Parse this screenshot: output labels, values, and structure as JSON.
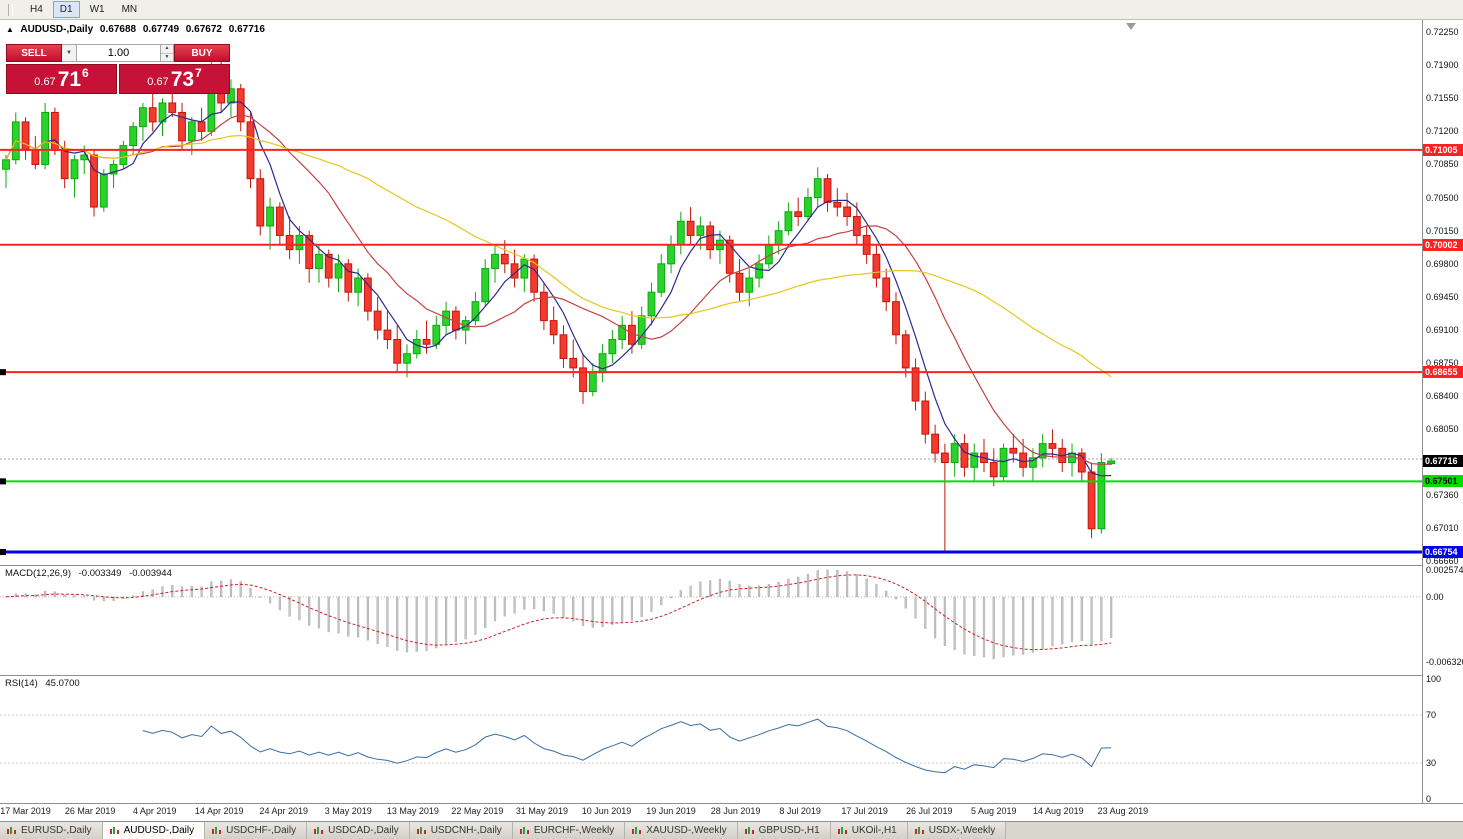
{
  "toolbar": {
    "timeframes": [
      {
        "label": "H4",
        "active": false
      },
      {
        "label": "D1",
        "active": true
      },
      {
        "label": "W1",
        "active": false
      },
      {
        "label": "MN",
        "active": false
      }
    ]
  },
  "icons": {
    "symbol_marker": "▲",
    "dropdown": "▼",
    "spin_up": "▲",
    "spin_down": "▼"
  },
  "header": {
    "symbol": "AUDUSD-,Daily",
    "open": "0.67688",
    "high": "0.67749",
    "low": "0.67672",
    "close": "0.67716"
  },
  "trade_panel": {
    "sell_label": "SELL",
    "buy_label": "BUY",
    "volume": "1.00",
    "bid": {
      "prefix": "0.67",
      "big": "71",
      "sup": "6"
    },
    "ask": {
      "prefix": "0.67",
      "big": "73",
      "sup": "7"
    }
  },
  "levels": [
    {
      "value": 0.71005,
      "label": "0.71005",
      "color": "#ff2020",
      "text_color": "#ffffff",
      "width": 2,
      "anchor": false
    },
    {
      "value": 0.70002,
      "label": "0.70002",
      "color": "#ff2020",
      "text_color": "#ffffff",
      "width": 2,
      "anchor": false
    },
    {
      "value": 0.68655,
      "label": "0.68655",
      "color": "#ff2020",
      "text_color": "#ffffff",
      "width": 2,
      "anchor": true
    },
    {
      "value": 0.67501,
      "label": "0.67501",
      "color": "#00dd00",
      "text_color": "#000000",
      "width": 2,
      "anchor": true
    },
    {
      "value": 0.66754,
      "label": "0.66754",
      "color": "#0000ee",
      "text_color": "#ffffff",
      "width": 3,
      "anchor": true
    }
  ],
  "chart_data": {
    "type": "candlestick",
    "title": "AUDUSD-,Daily",
    "current_price": {
      "value": 0.67716,
      "label": "0.67716",
      "badge_bg": "#000000",
      "badge_text": "#ffffff"
    },
    "ask_line": 0.67737,
    "price_range": {
      "min": 0.66617,
      "max": 0.72377
    },
    "axis_ticks": [
      "0.72250",
      "0.71900",
      "0.71550",
      "0.71200",
      "0.70850",
      "0.70500",
      "0.70150",
      "0.69800",
      "0.69450",
      "0.69100",
      "0.68750",
      "0.68400",
      "0.68050",
      "0.67360",
      "0.67010",
      "0.66660"
    ],
    "x_labels": [
      "17 Mar 2019",
      "26 Mar 2019",
      "4 Apr 2019",
      "14 Apr 2019",
      "24 Apr 2019",
      "3 May 2019",
      "13 May 2019",
      "22 May 2019",
      "31 May 2019",
      "10 Jun 2019",
      "19 Jun 2019",
      "28 Jun 2019",
      "8 Jul 2019",
      "17 Jul 2019",
      "26 Jul 2019",
      "5 Aug 2019",
      "14 Aug 2019",
      "23 Aug 2019"
    ],
    "colors": {
      "up_fill": "#2bd22b",
      "up_stroke": "#0da80d",
      "down_fill": "#f23a2e",
      "down_stroke": "#c6150b"
    },
    "moving_averages": [
      {
        "period": 5,
        "color": "#2b2b8f"
      },
      {
        "period": 13,
        "color": "#c24444"
      },
      {
        "period": 34,
        "color": "#e8c61a"
      }
    ],
    "candles": [
      [
        0.708,
        0.7095,
        0.706,
        0.709
      ],
      [
        0.709,
        0.714,
        0.7085,
        0.713
      ],
      [
        0.713,
        0.7135,
        0.709,
        0.71
      ],
      [
        0.71,
        0.7115,
        0.708,
        0.7085
      ],
      [
        0.7085,
        0.715,
        0.708,
        0.714
      ],
      [
        0.714,
        0.7145,
        0.7095,
        0.71
      ],
      [
        0.71,
        0.711,
        0.706,
        0.707
      ],
      [
        0.707,
        0.7095,
        0.705,
        0.709
      ],
      [
        0.709,
        0.7105,
        0.7075,
        0.7095
      ],
      [
        0.7095,
        0.71,
        0.703,
        0.704
      ],
      [
        0.704,
        0.708,
        0.7035,
        0.7075
      ],
      [
        0.7075,
        0.709,
        0.706,
        0.7085
      ],
      [
        0.7085,
        0.711,
        0.708,
        0.7105
      ],
      [
        0.7105,
        0.713,
        0.7095,
        0.7125
      ],
      [
        0.7125,
        0.715,
        0.711,
        0.7145
      ],
      [
        0.7145,
        0.716,
        0.712,
        0.713
      ],
      [
        0.713,
        0.7155,
        0.7115,
        0.715
      ],
      [
        0.715,
        0.7165,
        0.7135,
        0.714
      ],
      [
        0.714,
        0.715,
        0.71,
        0.711
      ],
      [
        0.711,
        0.7135,
        0.7095,
        0.713
      ],
      [
        0.713,
        0.7145,
        0.711,
        0.712
      ],
      [
        0.712,
        0.7205,
        0.7115,
        0.719
      ],
      [
        0.719,
        0.7195,
        0.714,
        0.715
      ],
      [
        0.715,
        0.7175,
        0.7135,
        0.7165
      ],
      [
        0.7165,
        0.717,
        0.712,
        0.713
      ],
      [
        0.713,
        0.714,
        0.706,
        0.707
      ],
      [
        0.707,
        0.708,
        0.701,
        0.702
      ],
      [
        0.702,
        0.705,
        0.6995,
        0.704
      ],
      [
        0.704,
        0.7045,
        0.7,
        0.701
      ],
      [
        0.701,
        0.703,
        0.6985,
        0.6995
      ],
      [
        0.6995,
        0.702,
        0.698,
        0.701
      ],
      [
        0.701,
        0.7015,
        0.696,
        0.6975
      ],
      [
        0.6975,
        0.7,
        0.696,
        0.699
      ],
      [
        0.699,
        0.6995,
        0.6955,
        0.6965
      ],
      [
        0.6965,
        0.699,
        0.695,
        0.698
      ],
      [
        0.698,
        0.6985,
        0.694,
        0.695
      ],
      [
        0.695,
        0.6975,
        0.6935,
        0.6965
      ],
      [
        0.6965,
        0.697,
        0.692,
        0.693
      ],
      [
        0.693,
        0.6945,
        0.69,
        0.691
      ],
      [
        0.691,
        0.693,
        0.689,
        0.69
      ],
      [
        0.69,
        0.6915,
        0.6865,
        0.6875
      ],
      [
        0.6875,
        0.6895,
        0.686,
        0.6885
      ],
      [
        0.6885,
        0.691,
        0.688,
        0.69
      ],
      [
        0.69,
        0.692,
        0.6885,
        0.6895
      ],
      [
        0.6895,
        0.6925,
        0.689,
        0.6915
      ],
      [
        0.6915,
        0.694,
        0.6905,
        0.693
      ],
      [
        0.693,
        0.6935,
        0.69,
        0.691
      ],
      [
        0.691,
        0.6925,
        0.6895,
        0.692
      ],
      [
        0.692,
        0.695,
        0.6915,
        0.694
      ],
      [
        0.694,
        0.6985,
        0.6935,
        0.6975
      ],
      [
        0.6975,
        0.7,
        0.696,
        0.699
      ],
      [
        0.699,
        0.7005,
        0.697,
        0.698
      ],
      [
        0.698,
        0.6995,
        0.6955,
        0.6965
      ],
      [
        0.6965,
        0.699,
        0.695,
        0.6985
      ],
      [
        0.6985,
        0.699,
        0.694,
        0.695
      ],
      [
        0.695,
        0.696,
        0.691,
        0.692
      ],
      [
        0.692,
        0.6935,
        0.6895,
        0.6905
      ],
      [
        0.6905,
        0.6915,
        0.687,
        0.688
      ],
      [
        0.688,
        0.69,
        0.686,
        0.687
      ],
      [
        0.687,
        0.6885,
        0.6832,
        0.6845
      ],
      [
        0.6845,
        0.6875,
        0.684,
        0.6865
      ],
      [
        0.6865,
        0.6895,
        0.6855,
        0.6885
      ],
      [
        0.6885,
        0.691,
        0.6875,
        0.69
      ],
      [
        0.69,
        0.6925,
        0.689,
        0.6915
      ],
      [
        0.6915,
        0.693,
        0.6885,
        0.6895
      ],
      [
        0.6895,
        0.6935,
        0.689,
        0.6925
      ],
      [
        0.6925,
        0.696,
        0.6915,
        0.695
      ],
      [
        0.695,
        0.699,
        0.6945,
        0.698
      ],
      [
        0.698,
        0.701,
        0.697,
        0.7
      ],
      [
        0.7,
        0.7035,
        0.699,
        0.7025
      ],
      [
        0.7025,
        0.704,
        0.7,
        0.701
      ],
      [
        0.701,
        0.703,
        0.6995,
        0.702
      ],
      [
        0.702,
        0.7025,
        0.6985,
        0.6995
      ],
      [
        0.6995,
        0.7015,
        0.698,
        0.7005
      ],
      [
        0.7005,
        0.701,
        0.696,
        0.697
      ],
      [
        0.697,
        0.6985,
        0.694,
        0.695
      ],
      [
        0.695,
        0.6975,
        0.6935,
        0.6965
      ],
      [
        0.6965,
        0.699,
        0.6955,
        0.698
      ],
      [
        0.698,
        0.701,
        0.6975,
        0.7
      ],
      [
        0.7,
        0.7025,
        0.699,
        0.7015
      ],
      [
        0.7015,
        0.7045,
        0.701,
        0.7035
      ],
      [
        0.7035,
        0.705,
        0.702,
        0.703
      ],
      [
        0.703,
        0.706,
        0.7025,
        0.705
      ],
      [
        0.705,
        0.7082,
        0.704,
        0.707
      ],
      [
        0.707,
        0.7075,
        0.7035,
        0.7045
      ],
      [
        0.7045,
        0.706,
        0.703,
        0.704
      ],
      [
        0.704,
        0.7055,
        0.702,
        0.703
      ],
      [
        0.703,
        0.7045,
        0.7,
        0.701
      ],
      [
        0.701,
        0.702,
        0.698,
        0.699
      ],
      [
        0.699,
        0.7,
        0.6955,
        0.6965
      ],
      [
        0.6965,
        0.6975,
        0.693,
        0.694
      ],
      [
        0.694,
        0.695,
        0.6895,
        0.6905
      ],
      [
        0.6905,
        0.691,
        0.686,
        0.687
      ],
      [
        0.687,
        0.688,
        0.6825,
        0.6835
      ],
      [
        0.6835,
        0.6845,
        0.679,
        0.68
      ],
      [
        0.68,
        0.681,
        0.677,
        0.678
      ],
      [
        0.678,
        0.679,
        0.6677,
        0.677
      ],
      [
        0.677,
        0.68,
        0.6755,
        0.679
      ],
      [
        0.679,
        0.68,
        0.6755,
        0.6765
      ],
      [
        0.6765,
        0.679,
        0.675,
        0.678
      ],
      [
        0.678,
        0.6795,
        0.676,
        0.677
      ],
      [
        0.677,
        0.6785,
        0.6745,
        0.6755
      ],
      [
        0.6755,
        0.679,
        0.675,
        0.6785
      ],
      [
        0.6785,
        0.68,
        0.677,
        0.678
      ],
      [
        0.678,
        0.6795,
        0.6755,
        0.6765
      ],
      [
        0.6765,
        0.6785,
        0.675,
        0.6775
      ],
      [
        0.6775,
        0.68,
        0.6765,
        0.679
      ],
      [
        0.679,
        0.6805,
        0.6775,
        0.6785
      ],
      [
        0.6785,
        0.6795,
        0.676,
        0.677
      ],
      [
        0.677,
        0.679,
        0.6755,
        0.678
      ],
      [
        0.678,
        0.6785,
        0.675,
        0.676
      ],
      [
        0.676,
        0.677,
        0.669,
        0.67
      ],
      [
        0.67,
        0.678,
        0.6695,
        0.677
      ],
      [
        0.67688,
        0.67749,
        0.67672,
        0.67716
      ]
    ]
  },
  "macd": {
    "label": "MACD(12,26,9)",
    "value_macd": "-0.003349",
    "value_signal": "-0.003944",
    "params": [
      12,
      26,
      9
    ],
    "range": {
      "min": -0.0076,
      "max": 0.0031
    },
    "axis_labels": [
      {
        "value": 0.002574,
        "label": "0.002574"
      },
      {
        "value": 0,
        "label": "0.00"
      },
      {
        "value": -0.006326,
        "label": "-0.006326"
      }
    ],
    "hist_color": "#c4c4c4",
    "signal_color": "#cc2222"
  },
  "rsi": {
    "label": "RSI(14)",
    "value": "45.0700",
    "period": 14,
    "levels": [
      70,
      30
    ],
    "color": "#3b6ea5",
    "axis_labels": [
      {
        "value": 100,
        "label": "100"
      },
      {
        "value": 70,
        "label": "70"
      },
      {
        "value": 30,
        "label": "30"
      },
      {
        "value": 0,
        "label": "0"
      }
    ]
  },
  "tabs": [
    {
      "label": "EURUSD-,Daily",
      "active": false
    },
    {
      "label": "AUDUSD-,Daily",
      "active": true
    },
    {
      "label": "USDCHF-,Daily",
      "active": false
    },
    {
      "label": "USDCAD-,Daily",
      "active": false
    },
    {
      "label": "USDCNH-,Daily",
      "active": false
    },
    {
      "label": "EURCHF-,Weekly",
      "active": false
    },
    {
      "label": "XAUUSD-,Weekly",
      "active": false
    },
    {
      "label": "GBPUSD-,H1",
      "active": false
    },
    {
      "label": "UKOil-,H1",
      "active": false
    },
    {
      "label": "USDX-,Weekly",
      "active": false
    }
  ]
}
